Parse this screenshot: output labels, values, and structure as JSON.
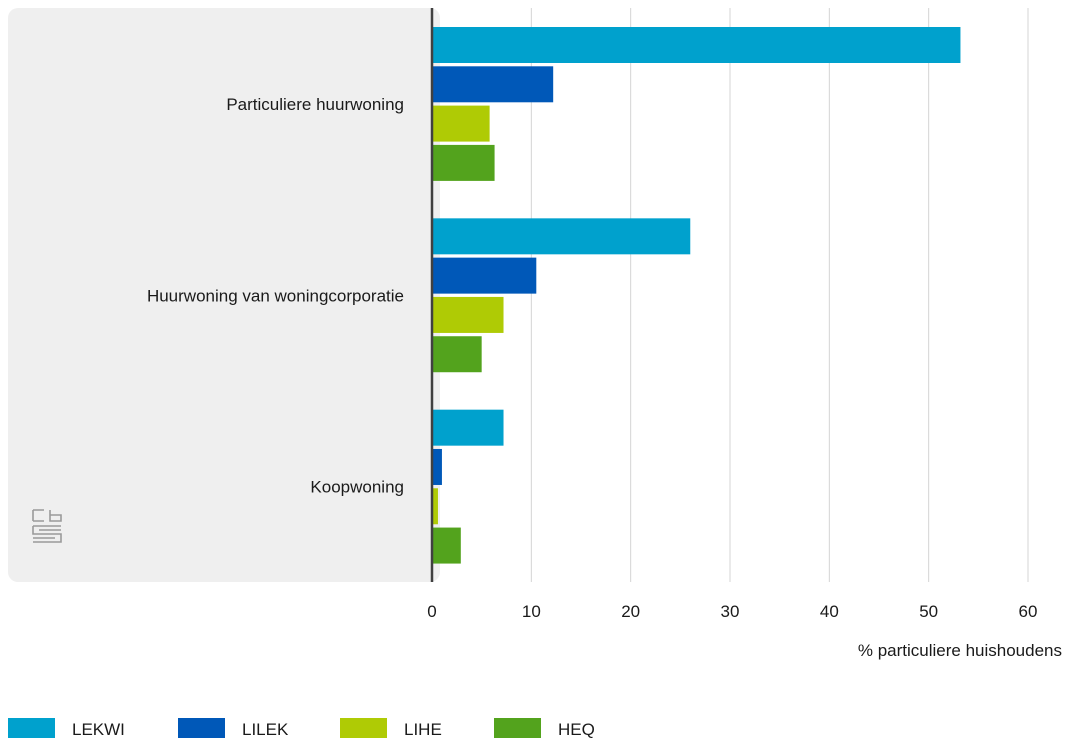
{
  "chart_data": {
    "type": "bar",
    "orientation": "horizontal",
    "categories": [
      "Particuliere huurwoning",
      "Huurwoning van woningcorporatie",
      "Koopwoning"
    ],
    "series": [
      {
        "name": "LEKWI",
        "color": "#00a1cd",
        "values": [
          53.2,
          26.0,
          7.2
        ]
      },
      {
        "name": "LILEK",
        "color": "#0058b8",
        "values": [
          12.2,
          10.5,
          1.0
        ]
      },
      {
        "name": "LIHE",
        "color": "#afcb05",
        "values": [
          5.8,
          7.2,
          0.6
        ]
      },
      {
        "name": "HEQ",
        "color": "#53a31d",
        "values": [
          6.3,
          5.0,
          2.9
        ]
      }
    ],
    "xlabel": "% particuliere huishoudens",
    "xlim": [
      0,
      60
    ],
    "xticks": [
      0,
      10,
      20,
      30,
      40,
      50,
      60
    ],
    "grid": true,
    "legend_position": "bottom-left"
  },
  "colors": {
    "label_panel": "#efefef",
    "gridline": "#d4d4d4",
    "axis": "#404040",
    "logo": "#9a9a9a"
  },
  "logo_icon": "cbs-logo-icon"
}
